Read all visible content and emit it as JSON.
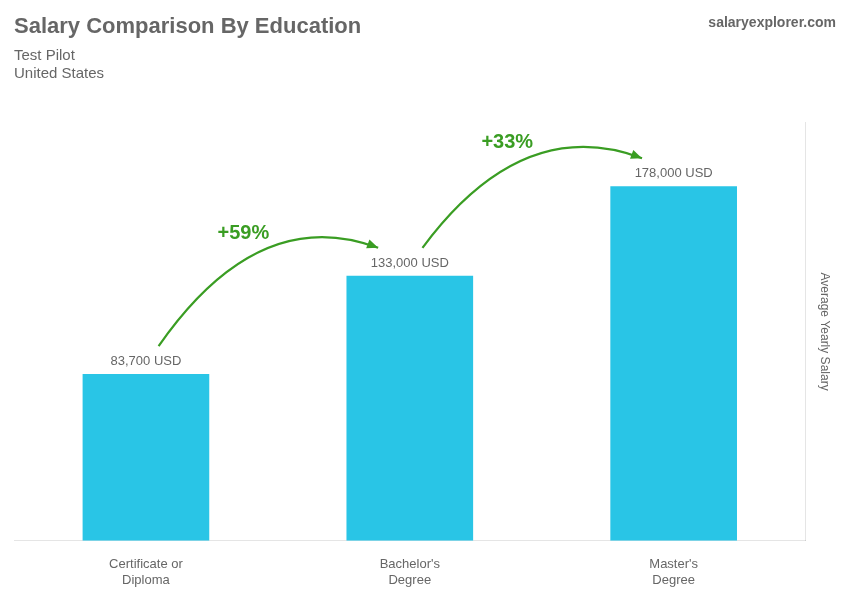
{
  "chart_data": {
    "type": "bar",
    "title": "Salary Comparison By Education",
    "subtitle": [
      "Test Pilot",
      "United States"
    ],
    "source": "salaryexplorer.com",
    "y_label": "Average Yearly Salary",
    "categories": [
      "Certificate or\nDiploma",
      "Bachelor's\nDegree",
      "Master's\nDegree"
    ],
    "values": [
      83700,
      133000,
      178000
    ],
    "value_labels": [
      "83,700 USD",
      "133,000 USD",
      "178,000 USD"
    ],
    "data_labels": true,
    "color": "#29c5e6",
    "annotations": [
      "+59%",
      "+33%"
    ],
    "ylim": [
      0,
      210000
    ],
    "tick_labels": "x",
    "grid": false
  }
}
